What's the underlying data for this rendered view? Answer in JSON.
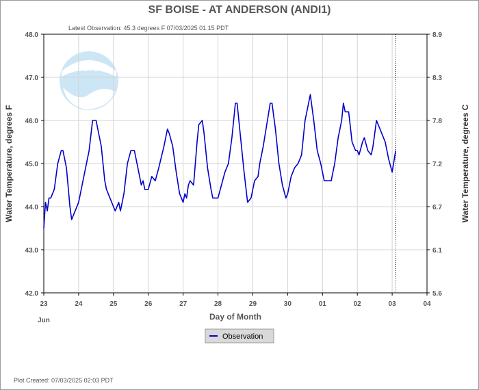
{
  "chart_data": {
    "type": "line",
    "title": "SF BOISE - AT ANDERSON  (ANDI1)",
    "subtitle": "Latest Observation: 45.3 degrees F 07/03/2025 01:15 PDT",
    "xlabel": "Day of Month",
    "x_month_label": "Jun",
    "ylabel_left": "Water Temperature, degrees F",
    "ylabel_right": "Water Temperature, degrees C",
    "footer": "Plot Created: 07/03/2025 02:03 PDT",
    "x_ticks": [
      "23",
      "24",
      "25",
      "26",
      "27",
      "28",
      "29",
      "30",
      "01",
      "02",
      "03",
      "04"
    ],
    "y_ticks_left": [
      "48.0",
      "47.0",
      "46.0",
      "45.0",
      "44.0",
      "43.0",
      "42.0"
    ],
    "y_ticks_right": [
      "8.9",
      "8.3",
      "7.8",
      "7.2",
      "6.7",
      "6.1",
      "5.6"
    ],
    "ylim": [
      42,
      48
    ],
    "xlim": [
      0,
      11
    ],
    "latest_observation_x": 10.1,
    "grid": true,
    "legend_position": "bottom-center",
    "colors": {
      "series": "#0000cc",
      "grid": "#d3d3d3"
    },
    "series": [
      {
        "name": "Observation",
        "x": [
          0,
          0.05,
          0.1,
          0.15,
          0.2,
          0.3,
          0.4,
          0.5,
          0.55,
          0.65,
          0.75,
          0.8,
          0.9,
          1.0,
          1.1,
          1.2,
          1.3,
          1.4,
          1.5,
          1.55,
          1.65,
          1.75,
          1.8,
          1.9,
          2.0,
          2.05,
          2.15,
          2.2,
          2.3,
          2.4,
          2.5,
          2.6,
          2.7,
          2.8,
          2.85,
          2.9,
          3.0,
          3.1,
          3.2,
          3.3,
          3.45,
          3.55,
          3.6,
          3.7,
          3.8,
          3.9,
          4.0,
          4.05,
          4.1,
          4.15,
          4.2,
          4.3,
          4.4,
          4.45,
          4.55,
          4.6,
          4.7,
          4.8,
          4.85,
          4.95,
          5.0,
          5.1,
          5.2,
          5.3,
          5.4,
          5.5,
          5.55,
          5.65,
          5.75,
          5.85,
          5.95,
          6.05,
          6.15,
          6.2,
          6.3,
          6.4,
          6.5,
          6.55,
          6.65,
          6.75,
          6.85,
          6.95,
          7.0,
          7.1,
          7.2,
          7.3,
          7.4,
          7.5,
          7.55,
          7.65,
          7.75,
          7.85,
          7.95,
          8.05,
          8.15,
          8.25,
          8.35,
          8.45,
          8.55,
          8.6,
          8.65,
          8.75,
          8.85,
          8.95,
          9.0,
          9.05,
          9.15,
          9.2,
          9.3,
          9.4,
          9.45,
          9.55,
          9.65,
          9.75,
          9.8,
          9.9,
          10.0,
          10.1
        ],
        "values": [
          43.5,
          44.1,
          43.9,
          44.2,
          44.2,
          44.4,
          45.0,
          45.3,
          45.3,
          44.9,
          44.0,
          43.7,
          43.9,
          44.1,
          44.5,
          44.9,
          45.3,
          46.0,
          46.0,
          45.8,
          45.4,
          44.6,
          44.4,
          44.2,
          44.0,
          43.9,
          44.1,
          43.9,
          44.3,
          45.0,
          45.3,
          45.3,
          44.9,
          44.5,
          44.6,
          44.4,
          44.4,
          44.7,
          44.6,
          44.9,
          45.4,
          45.8,
          45.7,
          45.4,
          44.8,
          44.3,
          44.1,
          44.3,
          44.2,
          44.5,
          44.6,
          44.5,
          45.5,
          45.9,
          46.0,
          45.7,
          44.9,
          44.4,
          44.2,
          44.2,
          44.2,
          44.5,
          44.8,
          45.0,
          45.6,
          46.4,
          46.4,
          45.6,
          44.8,
          44.1,
          44.2,
          44.6,
          44.7,
          45.0,
          45.4,
          45.9,
          46.4,
          46.4,
          45.8,
          45.0,
          44.5,
          44.2,
          44.3,
          44.7,
          44.9,
          45.0,
          45.2,
          46.0,
          46.2,
          46.6,
          46.0,
          45.3,
          45.0,
          44.6,
          44.6,
          44.6,
          45.0,
          45.6,
          46.0,
          46.4,
          46.2,
          46.2,
          45.5,
          45.3,
          45.3,
          45.2,
          45.5,
          45.6,
          45.3,
          45.2,
          45.4,
          46.0,
          45.8,
          45.6,
          45.5,
          45.1,
          44.8,
          45.3
        ]
      }
    ]
  }
}
